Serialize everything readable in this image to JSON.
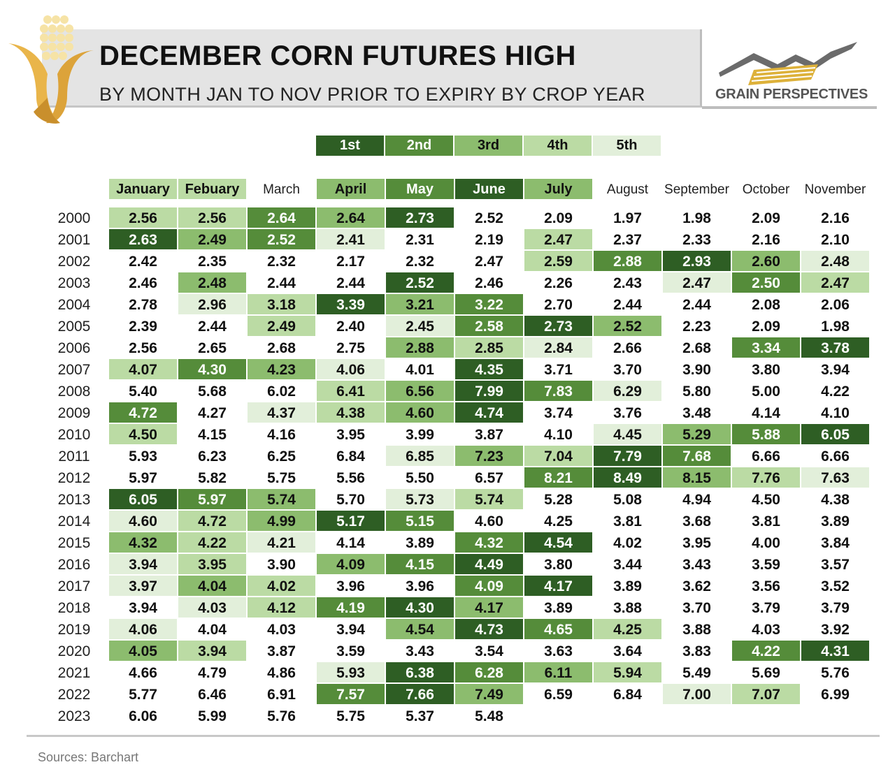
{
  "header": {
    "title": "DECEMBER CORN FUTURES HIGH",
    "subtitle": "BY MONTH JAN TO NOV PRIOR TO EXPIRY BY CROP YEAR",
    "brand": "GRAIN PERSPECTIVES"
  },
  "legend": {
    "labels": [
      "1st",
      "2nd",
      "3rd",
      "4th",
      "5th"
    ],
    "colors": [
      "#2e5e24",
      "#558c3a",
      "#8cbc6e",
      "#bbdba4",
      "#e2efda"
    ],
    "text_colors": [
      "#ffffff",
      "#ffffff",
      "#111111",
      "#111111",
      "#111111"
    ]
  },
  "footer": {
    "source": "Sources: Barchart"
  },
  "chart_data": {
    "type": "table",
    "title": "DECEMBER CORN FUTURES HIGH",
    "subtitle": "BY MONTH JAN TO NOV PRIOR TO EXPIRY BY CROP YEAR",
    "columns": [
      "January",
      "Febuary",
      "March",
      "April",
      "May",
      "June",
      "July",
      "August",
      "September",
      "October",
      "November"
    ],
    "column_header_rank": [
      4,
      4,
      0,
      3,
      2,
      1,
      3,
      0,
      0,
      0,
      0
    ],
    "rows": [
      {
        "year": "2000",
        "values": [
          "2.56",
          "2.56",
          "2.64",
          "2.64",
          "2.73",
          "2.52",
          "2.09",
          "1.97",
          "1.98",
          "2.09",
          "2.16"
        ],
        "rank": [
          4,
          4,
          2,
          3,
          1,
          0,
          0,
          0,
          0,
          0,
          0
        ]
      },
      {
        "year": "2001",
        "values": [
          "2.63",
          "2.49",
          "2.52",
          "2.41",
          "2.31",
          "2.19",
          "2.47",
          "2.37",
          "2.33",
          "2.16",
          "2.10"
        ],
        "rank": [
          1,
          3,
          2,
          5,
          0,
          0,
          4,
          0,
          0,
          0,
          0
        ]
      },
      {
        "year": "2002",
        "values": [
          "2.42",
          "2.35",
          "2.32",
          "2.17",
          "2.32",
          "2.47",
          "2.59",
          "2.88",
          "2.93",
          "2.60",
          "2.48"
        ],
        "rank": [
          0,
          0,
          0,
          0,
          0,
          0,
          4,
          2,
          1,
          3,
          5
        ]
      },
      {
        "year": "2003",
        "values": [
          "2.46",
          "2.48",
          "2.44",
          "2.44",
          "2.52",
          "2.46",
          "2.26",
          "2.43",
          "2.47",
          "2.50",
          "2.47"
        ],
        "rank": [
          0,
          3,
          0,
          0,
          1,
          0,
          0,
          0,
          5,
          2,
          4
        ]
      },
      {
        "year": "2004",
        "values": [
          "2.78",
          "2.96",
          "3.18",
          "3.39",
          "3.21",
          "3.22",
          "2.70",
          "2.44",
          "2.44",
          "2.08",
          "2.06"
        ],
        "rank": [
          0,
          5,
          4,
          1,
          3,
          2,
          0,
          0,
          0,
          0,
          0
        ]
      },
      {
        "year": "2005",
        "values": [
          "2.39",
          "2.44",
          "2.49",
          "2.40",
          "2.45",
          "2.58",
          "2.73",
          "2.52",
          "2.23",
          "2.09",
          "1.98"
        ],
        "rank": [
          0,
          0,
          4,
          0,
          5,
          2,
          1,
          3,
          0,
          0,
          0
        ]
      },
      {
        "year": "2006",
        "values": [
          "2.56",
          "2.65",
          "2.68",
          "2.75",
          "2.88",
          "2.85",
          "2.84",
          "2.66",
          "2.68",
          "3.34",
          "3.78"
        ],
        "rank": [
          0,
          0,
          0,
          0,
          3,
          4,
          5,
          0,
          0,
          2,
          1
        ]
      },
      {
        "year": "2007",
        "values": [
          "4.07",
          "4.30",
          "4.23",
          "4.06",
          "4.01",
          "4.35",
          "3.71",
          "3.70",
          "3.90",
          "3.80",
          "3.94"
        ],
        "rank": [
          4,
          2,
          3,
          5,
          0,
          1,
          0,
          0,
          0,
          0,
          0
        ]
      },
      {
        "year": "2008",
        "values": [
          "5.40",
          "5.68",
          "6.02",
          "6.41",
          "6.56",
          "7.99",
          "7.83",
          "6.29",
          "5.80",
          "5.00",
          "4.22"
        ],
        "rank": [
          0,
          0,
          0,
          4,
          3,
          1,
          2,
          5,
          0,
          0,
          0
        ]
      },
      {
        "year": "2009",
        "values": [
          "4.72",
          "4.27",
          "4.37",
          "4.38",
          "4.60",
          "4.74",
          "3.74",
          "3.76",
          "3.48",
          "4.14",
          "4.10"
        ],
        "rank": [
          2,
          0,
          5,
          4,
          3,
          1,
          0,
          0,
          0,
          0,
          0
        ]
      },
      {
        "year": "2010",
        "values": [
          "4.50",
          "4.15",
          "4.16",
          "3.95",
          "3.99",
          "3.87",
          "4.10",
          "4.45",
          "5.29",
          "5.88",
          "6.05"
        ],
        "rank": [
          4,
          0,
          0,
          0,
          0,
          0,
          0,
          5,
          3,
          2,
          1
        ]
      },
      {
        "year": "2011",
        "values": [
          "5.93",
          "6.23",
          "6.25",
          "6.84",
          "6.85",
          "7.23",
          "7.04",
          "7.79",
          "7.68",
          "6.66",
          "6.66"
        ],
        "rank": [
          0,
          0,
          0,
          0,
          5,
          3,
          4,
          1,
          2,
          0,
          0
        ]
      },
      {
        "year": "2012",
        "values": [
          "5.97",
          "5.82",
          "5.75",
          "5.56",
          "5.50",
          "6.57",
          "8.21",
          "8.49",
          "8.15",
          "7.76",
          "7.63"
        ],
        "rank": [
          0,
          0,
          0,
          0,
          0,
          0,
          2,
          1,
          3,
          4,
          5
        ]
      },
      {
        "year": "2013",
        "values": [
          "6.05",
          "5.97",
          "5.74",
          "5.70",
          "5.73",
          "5.74",
          "5.28",
          "5.08",
          "4.94",
          "4.50",
          "4.38"
        ],
        "rank": [
          1,
          2,
          3,
          0,
          5,
          4,
          0,
          0,
          0,
          0,
          0
        ]
      },
      {
        "year": "2014",
        "values": [
          "4.60",
          "4.72",
          "4.99",
          "5.17",
          "5.15",
          "4.60",
          "4.25",
          "3.81",
          "3.68",
          "3.81",
          "3.89"
        ],
        "rank": [
          5,
          4,
          3,
          1,
          2,
          0,
          0,
          0,
          0,
          0,
          0
        ]
      },
      {
        "year": "2015",
        "values": [
          "4.32",
          "4.22",
          "4.21",
          "4.14",
          "3.89",
          "4.32",
          "4.54",
          "4.02",
          "3.95",
          "4.00",
          "3.84"
        ],
        "rank": [
          3,
          4,
          5,
          0,
          0,
          2,
          1,
          0,
          0,
          0,
          0
        ]
      },
      {
        "year": "2016",
        "values": [
          "3.94",
          "3.95",
          "3.90",
          "4.09",
          "4.15",
          "4.49",
          "3.80",
          "3.44",
          "3.43",
          "3.59",
          "3.57"
        ],
        "rank": [
          5,
          4,
          0,
          3,
          2,
          1,
          0,
          0,
          0,
          0,
          0
        ]
      },
      {
        "year": "2017",
        "values": [
          "3.97",
          "4.04",
          "4.02",
          "3.96",
          "3.96",
          "4.09",
          "4.17",
          "3.89",
          "3.62",
          "3.56",
          "3.52"
        ],
        "rank": [
          5,
          3,
          4,
          0,
          0,
          2,
          1,
          0,
          0,
          0,
          0
        ]
      },
      {
        "year": "2018",
        "values": [
          "3.94",
          "4.03",
          "4.12",
          "4.19",
          "4.30",
          "4.17",
          "3.89",
          "3.88",
          "3.70",
          "3.79",
          "3.79"
        ],
        "rank": [
          0,
          5,
          4,
          2,
          1,
          3,
          0,
          0,
          0,
          0,
          0
        ]
      },
      {
        "year": "2019",
        "values": [
          "4.06",
          "4.04",
          "4.03",
          "3.94",
          "4.54",
          "4.73",
          "4.65",
          "4.25",
          "3.88",
          "4.03",
          "3.92"
        ],
        "rank": [
          5,
          0,
          0,
          0,
          3,
          1,
          2,
          4,
          0,
          0,
          0
        ]
      },
      {
        "year": "2020",
        "values": [
          "4.05",
          "3.94",
          "3.87",
          "3.59",
          "3.43",
          "3.54",
          "3.63",
          "3.64",
          "3.83",
          "4.22",
          "4.31"
        ],
        "rank": [
          3,
          4,
          0,
          0,
          0,
          0,
          0,
          0,
          0,
          2,
          1
        ]
      },
      {
        "year": "2021",
        "values": [
          "4.66",
          "4.79",
          "4.86",
          "5.93",
          "6.38",
          "6.28",
          "6.11",
          "5.94",
          "5.49",
          "5.69",
          "5.76"
        ],
        "rank": [
          0,
          0,
          0,
          5,
          1,
          2,
          3,
          4,
          0,
          0,
          0
        ]
      },
      {
        "year": "2022",
        "values": [
          "5.77",
          "6.46",
          "6.91",
          "7.57",
          "7.66",
          "7.49",
          "6.59",
          "6.84",
          "7.00",
          "7.07",
          "6.99"
        ],
        "rank": [
          0,
          0,
          0,
          2,
          1,
          3,
          0,
          0,
          5,
          4,
          0
        ]
      },
      {
        "year": "2023",
        "values": [
          "6.06",
          "5.99",
          "5.76",
          "5.75",
          "5.37",
          "5.48"
        ],
        "rank": [
          0,
          0,
          0,
          0,
          0,
          0
        ]
      }
    ]
  }
}
